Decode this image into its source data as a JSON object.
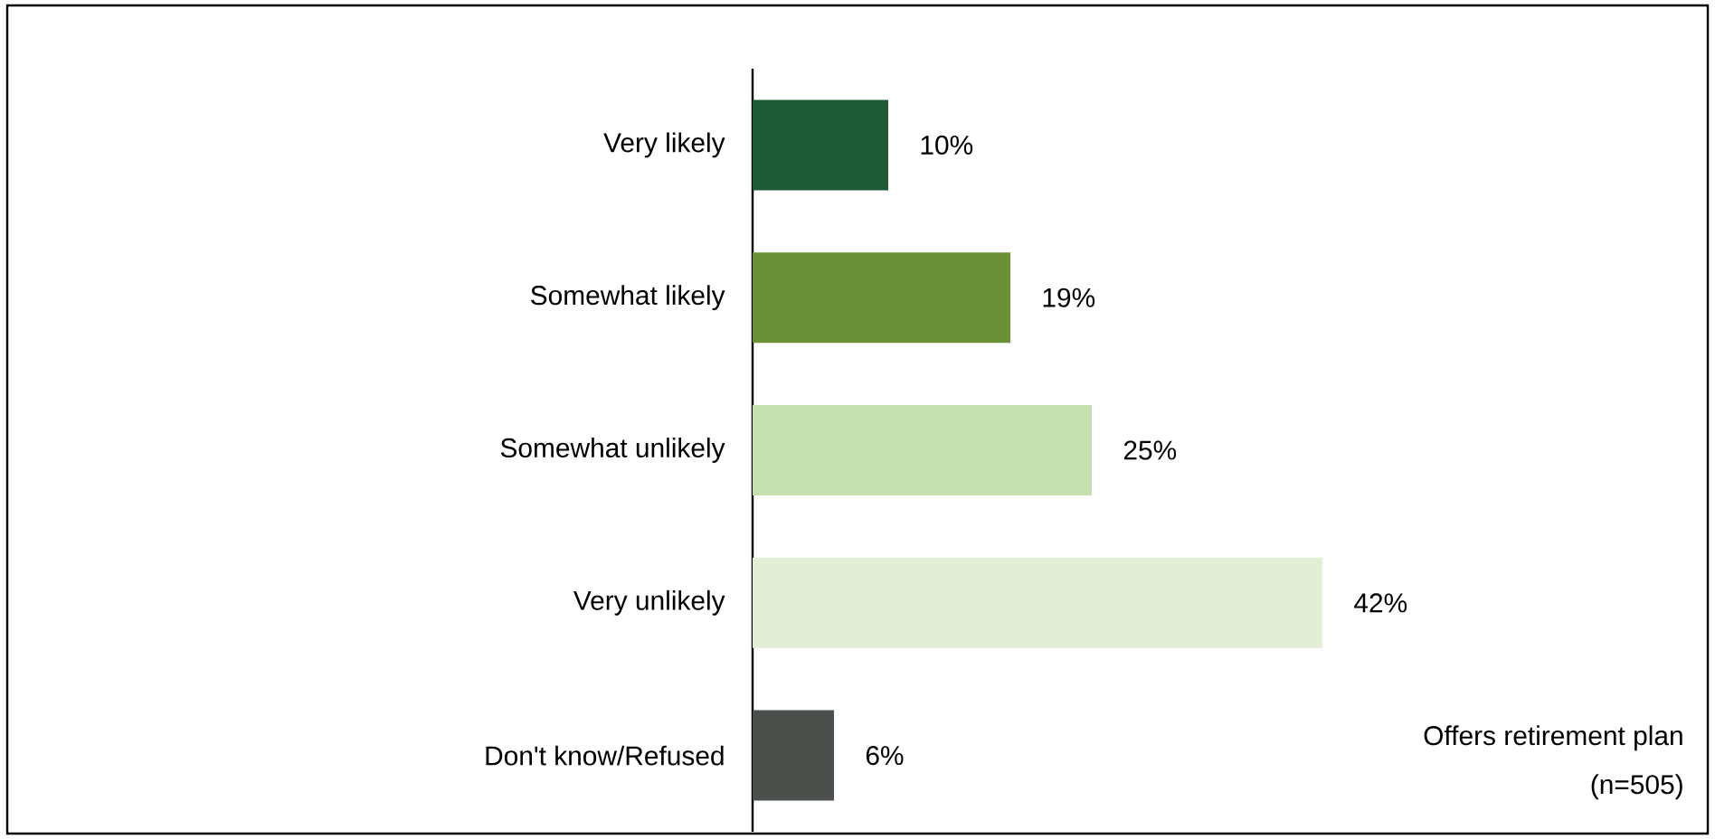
{
  "chart_data": {
    "type": "bar",
    "orientation": "horizontal",
    "categories": [
      "Very likely",
      "Somewhat likely",
      "Somewhat unlikely",
      "Very unlikely",
      "Don't know/Refused"
    ],
    "values": [
      10,
      19,
      25,
      42,
      6
    ],
    "value_labels": [
      "10%",
      "19%",
      "25%",
      "42%",
      "6%"
    ],
    "colors": [
      "#1f5a36",
      "#6a9138",
      "#c6dfae",
      "#e2efd6",
      "#4b504c"
    ],
    "annotations": [
      "Offers retirement plan",
      "(n=505)"
    ]
  }
}
